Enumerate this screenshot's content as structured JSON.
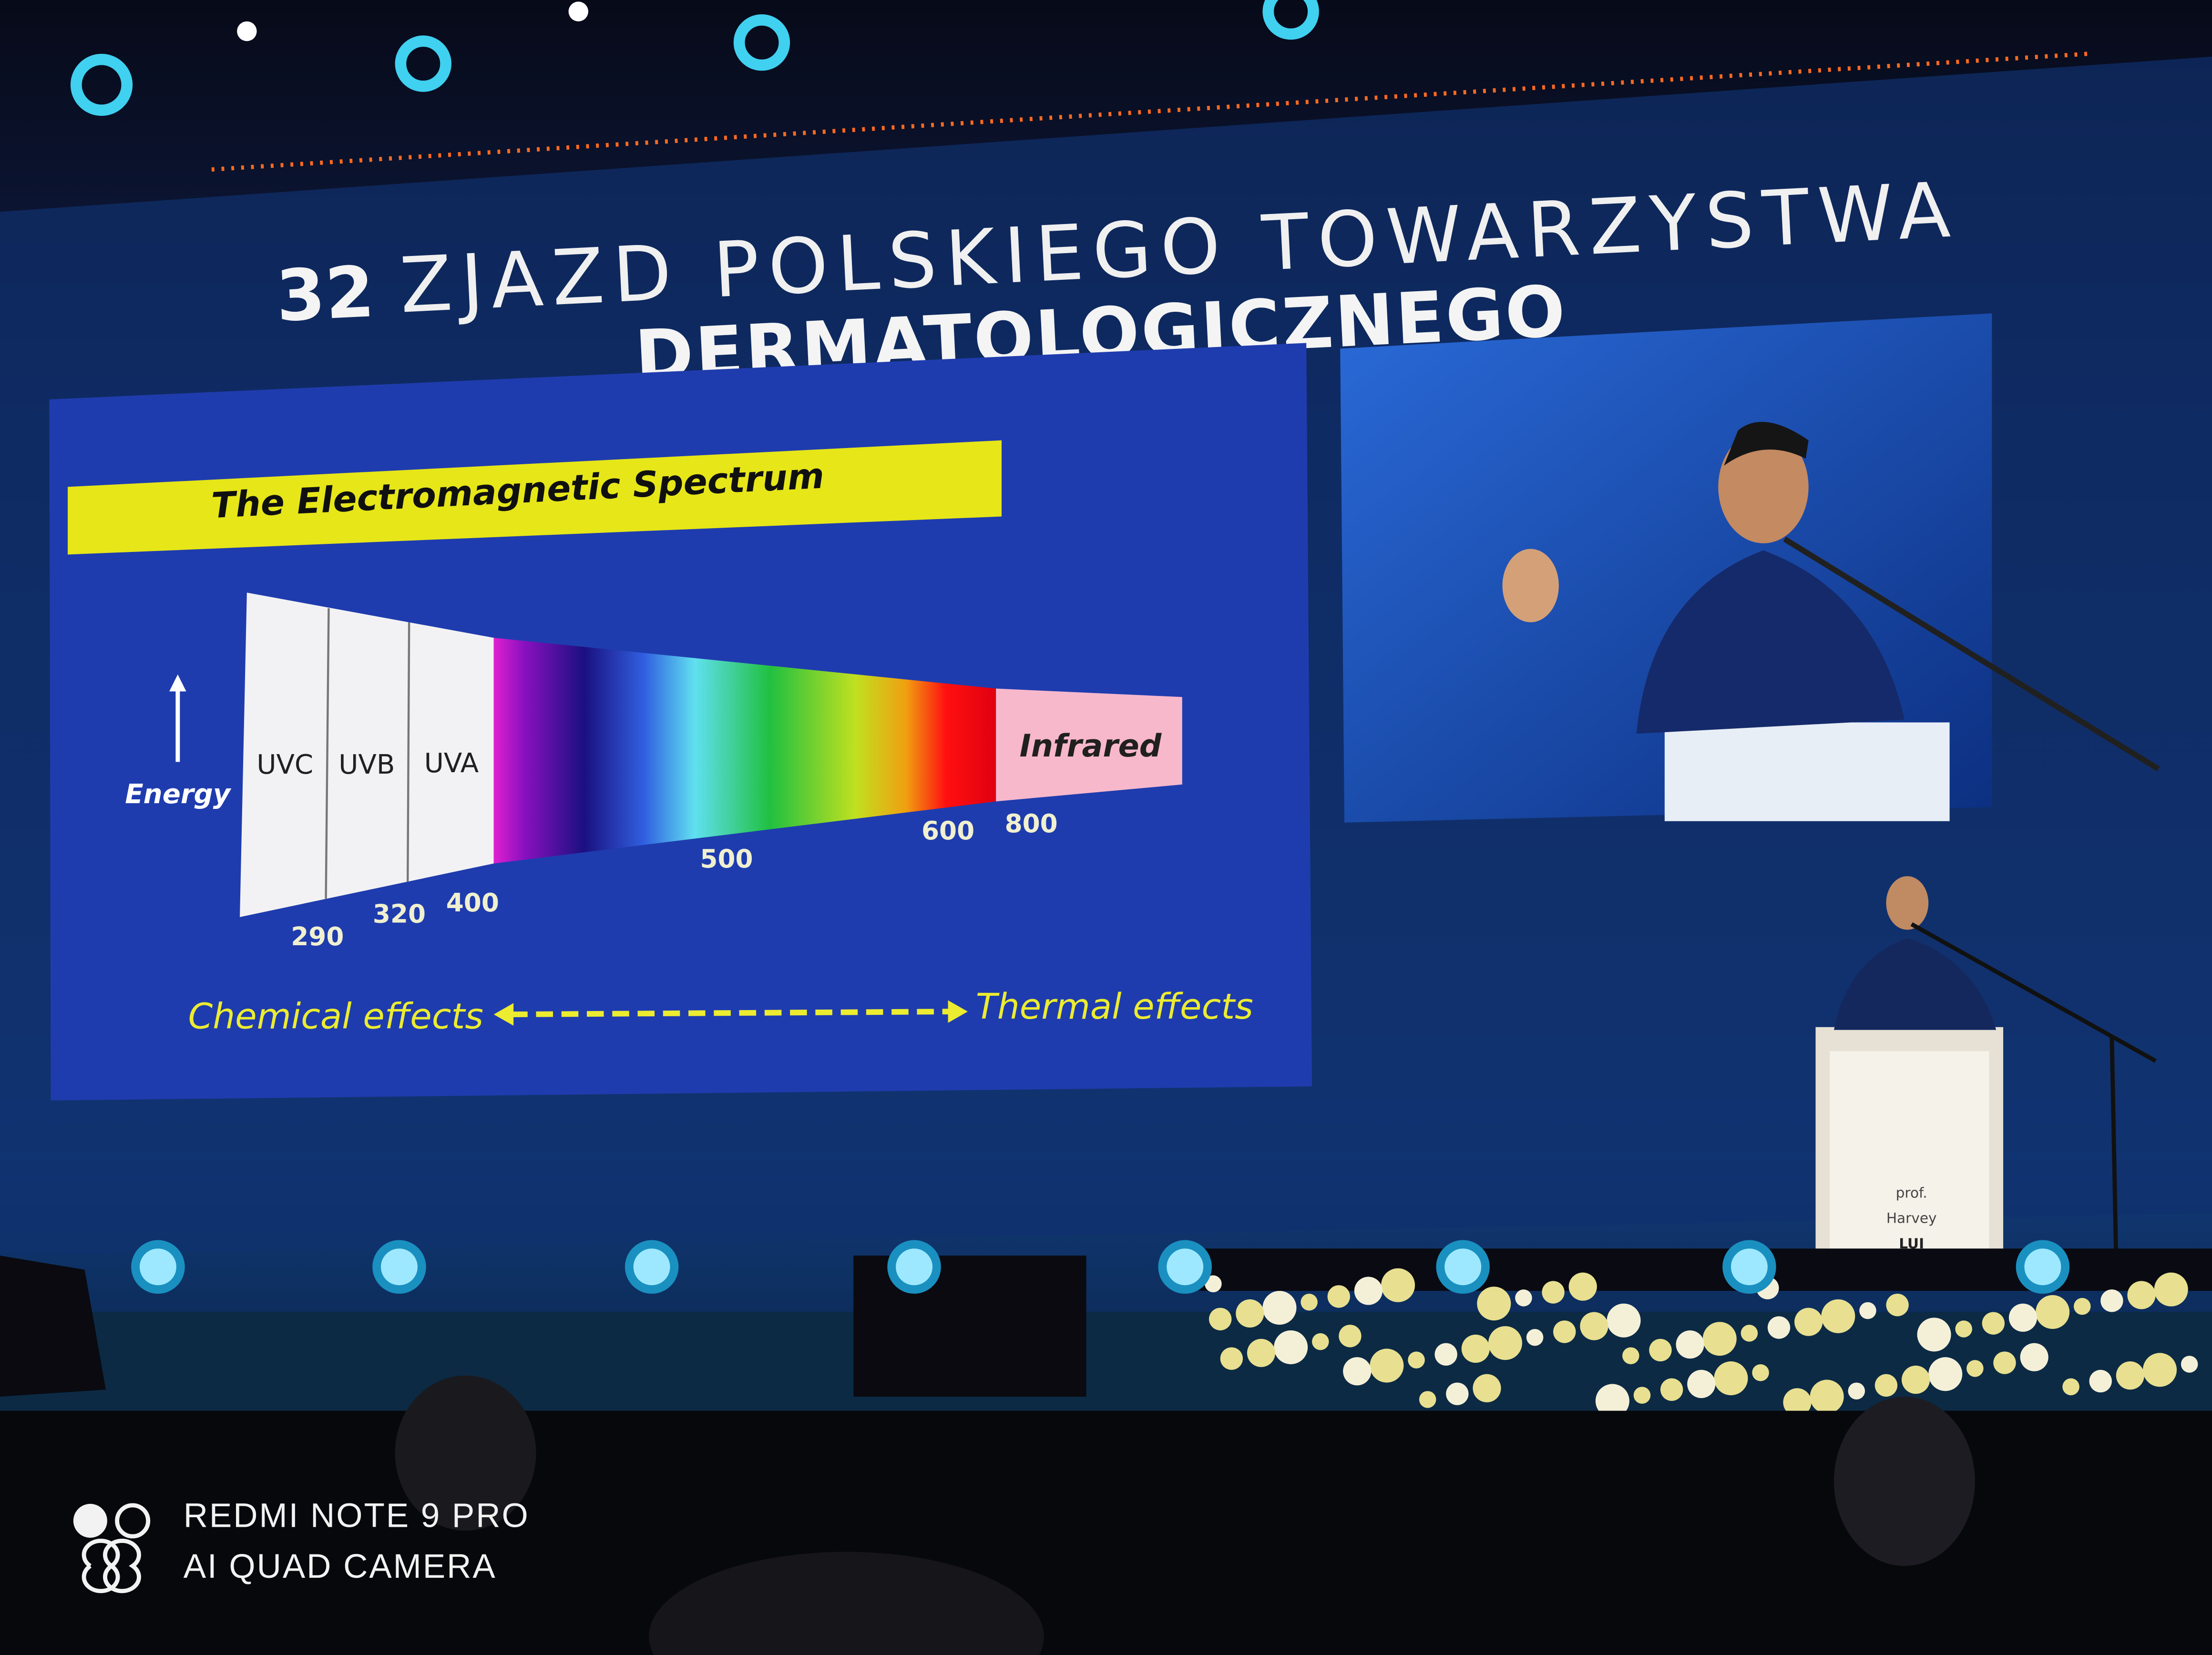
{
  "header": {
    "number": "32",
    "title_line1": "ZJAZD POLSKIEGO TOWARZYSTWA",
    "title_line2": "DERMATOLOGICZNEGO"
  },
  "slide": {
    "title": "The Electromagnetic Spectrum",
    "axis_label": "Energy",
    "bands": [
      "UVC",
      "UVB",
      "UVA",
      "Infrared"
    ],
    "wavelengths": [
      "290",
      "320",
      "400",
      "500",
      "600",
      "800"
    ],
    "left_effect": "Chemical effects",
    "right_effect": "Thermal effects"
  },
  "podium": {
    "lines": [
      "prof.",
      "Harvey",
      "LUI"
    ]
  },
  "watermark": {
    "line1": "REDMI NOTE 9 PRO",
    "line2": "AI QUAD CAMERA"
  }
}
